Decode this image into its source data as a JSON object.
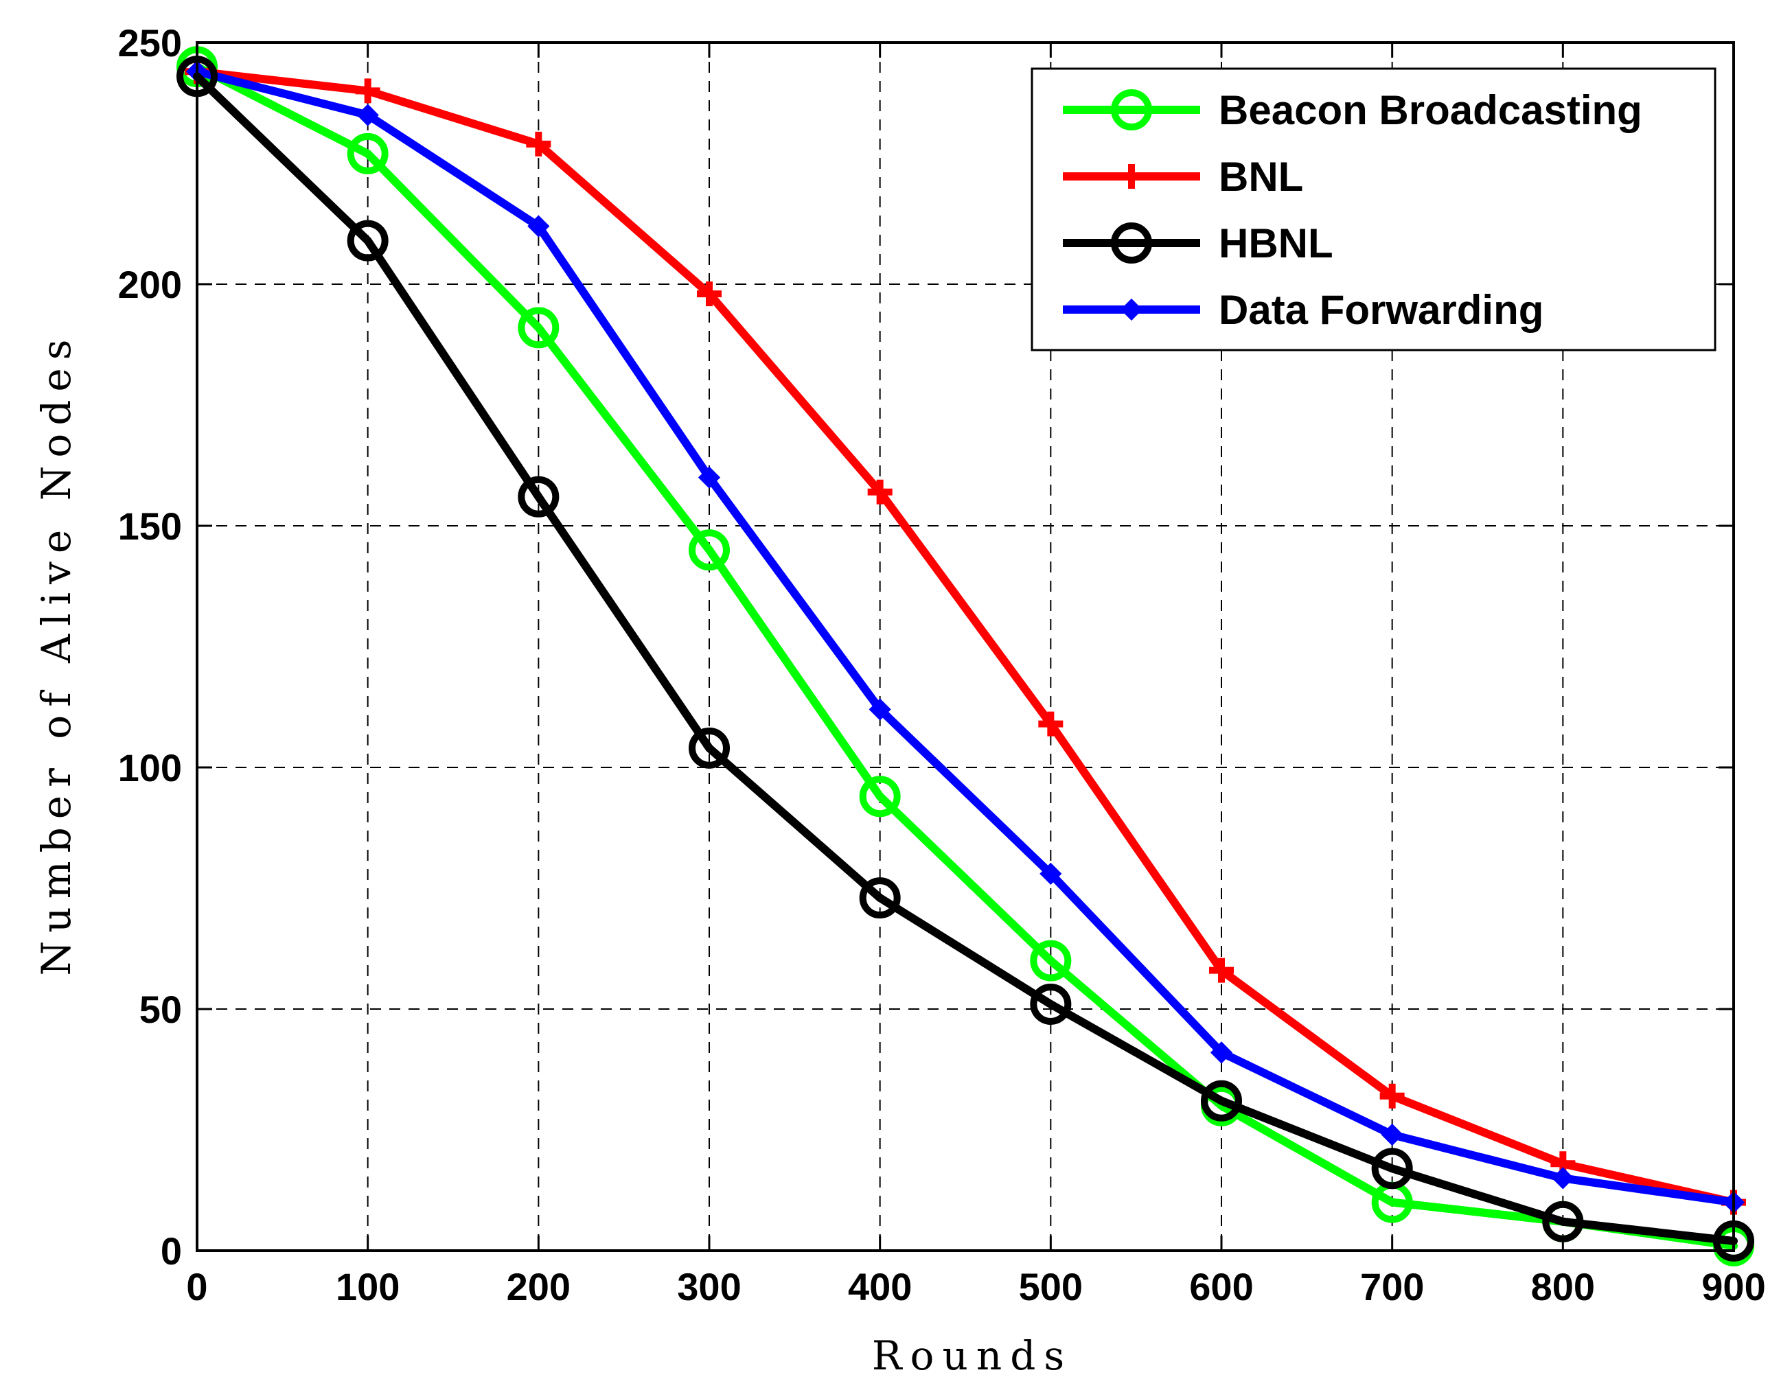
{
  "chart_data": {
    "type": "line",
    "title": "",
    "xlabel": "Rounds",
    "ylabel": "Number of Alive Nodes",
    "xlim": [
      0,
      900
    ],
    "ylim": [
      0,
      250
    ],
    "grid": true,
    "legend_position": "top-right",
    "x": [
      0,
      100,
      200,
      300,
      400,
      500,
      600,
      700,
      800,
      900
    ],
    "xticks": [
      "0",
      "100",
      "200",
      "300",
      "400",
      "500",
      "600",
      "700",
      "800",
      "900"
    ],
    "yticks": [
      "0",
      "50",
      "100",
      "150",
      "200",
      "250"
    ],
    "series": [
      {
        "name": "Beacon Broadcasting",
        "color": "#00ff00",
        "marker": "circle",
        "values": [
          245,
          227,
          191,
          145,
          94,
          60,
          30,
          10,
          6,
          1
        ]
      },
      {
        "name": "BNL",
        "color": "#ff0000",
        "marker": "plus",
        "values": [
          244,
          240,
          229,
          198,
          157,
          109,
          58,
          32,
          18,
          10
        ]
      },
      {
        "name": "HBNL",
        "color": "#000000",
        "marker": "circle",
        "values": [
          243,
          209,
          156,
          104,
          73,
          51,
          31,
          17,
          6,
          2
        ]
      },
      {
        "name": "Data Forwarding",
        "color": "#0000ff",
        "marker": "diamond",
        "values": [
          244,
          235,
          212,
          160,
          112,
          78,
          41,
          24,
          15,
          10
        ]
      }
    ]
  }
}
